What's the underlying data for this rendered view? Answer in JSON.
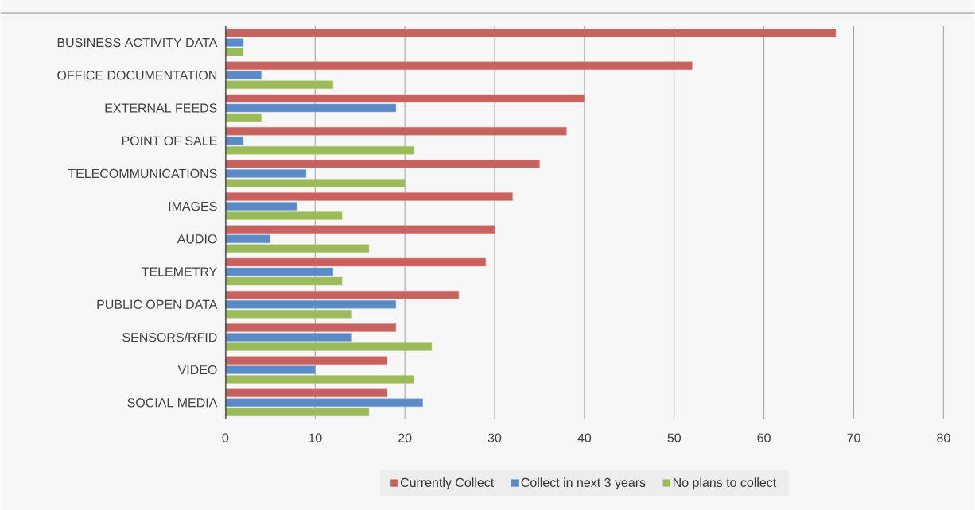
{
  "chart_data": {
    "type": "bar",
    "orientation": "horizontal",
    "categories": [
      "BUSINESS ACTIVITY DATA",
      "OFFICE DOCUMENTATION",
      "EXTERNAL FEEDS",
      "POINT OF SALE",
      "TELECOMMUNICATIONS",
      "IMAGES",
      "AUDIO",
      "TELEMETRY",
      "PUBLIC OPEN DATA",
      "SENSORS/RFID",
      "VIDEO",
      "SOCIAL MEDIA"
    ],
    "series": [
      {
        "name": "Currently Collect",
        "color": "#c9625f",
        "values": [
          68,
          52,
          40,
          38,
          35,
          32,
          30,
          29,
          26,
          19,
          18,
          18
        ]
      },
      {
        "name": "Collect in next 3 years",
        "color": "#5b8bc6",
        "values": [
          2,
          4,
          19,
          2,
          9,
          8,
          5,
          12,
          19,
          14,
          10,
          22
        ]
      },
      {
        "name": "No plans to collect",
        "color": "#9bbb59",
        "values": [
          2,
          12,
          4,
          21,
          20,
          13,
          16,
          13,
          14,
          23,
          21,
          16
        ]
      }
    ],
    "xlim": [
      0,
      80
    ],
    "xticks": [
      0,
      10,
      20,
      30,
      40,
      50,
      60,
      70,
      80
    ],
    "grid": "x",
    "legend": "bottom"
  }
}
